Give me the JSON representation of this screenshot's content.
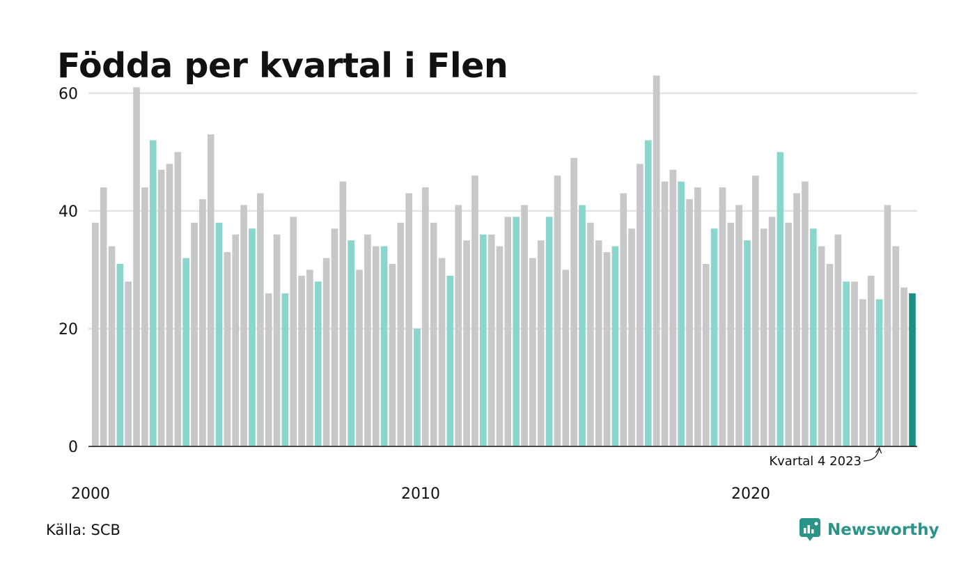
{
  "title": "Födda per kvartal i Flen",
  "source": "Källa: SCB",
  "brand": {
    "name": "Newsworthy",
    "icon": "newsworthy-logo-icon"
  },
  "colors": {
    "default": "#c8c8c8",
    "q4": "#8ad6cc",
    "latest": "#1a8f82",
    "grid": "#e3e3e3",
    "axis": "#111111",
    "brand": "#2a9488"
  },
  "chart_data": {
    "type": "bar",
    "start_year": 2000,
    "quarters_per_year": 4,
    "x_ticks": [
      "2000",
      "2010",
      "2020"
    ],
    "y_ticks": [
      0,
      20,
      40,
      60
    ],
    "ylim": [
      0,
      64
    ],
    "grid": true,
    "highlight_quarter": 4,
    "annotation": {
      "text": "Kvartal 4 2023",
      "target_index": 95
    },
    "values": [
      38,
      44,
      34,
      31,
      28,
      61,
      44,
      52,
      47,
      48,
      50,
      32,
      38,
      42,
      53,
      38,
      33,
      36,
      41,
      37,
      43,
      26,
      36,
      26,
      39,
      29,
      30,
      28,
      32,
      37,
      45,
      35,
      30,
      36,
      34,
      34,
      31,
      38,
      43,
      20,
      44,
      38,
      32,
      29,
      41,
      35,
      46,
      36,
      36,
      34,
      39,
      39,
      41,
      32,
      35,
      39,
      46,
      30,
      49,
      41,
      38,
      35,
      33,
      34,
      43,
      37,
      48,
      52,
      63,
      45,
      47,
      45,
      42,
      44,
      31,
      37,
      44,
      38,
      41,
      35,
      46,
      37,
      39,
      50,
      38,
      43,
      45,
      37,
      34,
      31,
      36,
      28,
      28,
      25,
      29,
      25,
      41,
      34,
      27,
      26
    ]
  }
}
